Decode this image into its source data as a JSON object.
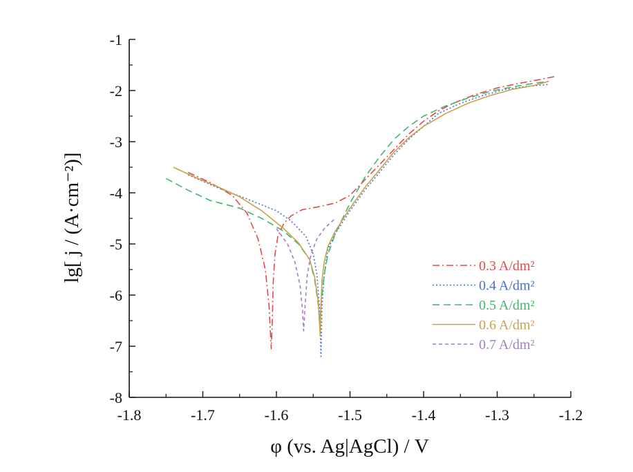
{
  "chart_data": {
    "type": "line",
    "title": "",
    "xlabel": "φ (vs. Ag|AgCl) / V",
    "ylabel": "lg[ j / (A·cm⁻²)]",
    "xlim": [
      -1.8,
      -1.2
    ],
    "ylim": [
      -8,
      -1
    ],
    "xticks": [
      -1.8,
      -1.7,
      -1.6,
      -1.5,
      -1.4,
      -1.3,
      -1.2
    ],
    "yticks": [
      -8,
      -7,
      -6,
      -5,
      -4,
      -3,
      -2,
      -1
    ],
    "xtick_labels": [
      "-1.8",
      "-1.7",
      "-1.6",
      "-1.5",
      "-1.4",
      "-1.3",
      "-1.2"
    ],
    "ytick_labels": [
      "-8",
      "-7",
      "-6",
      "-5",
      "-4",
      "-3",
      "-2",
      "-1"
    ],
    "grid": false,
    "legend_position": "bottom-right",
    "series": [
      {
        "name": "0.3 A/dm²",
        "color": "#e04a4a",
        "dash": "dashdot",
        "x": [
          -1.72,
          -1.69,
          -1.66,
          -1.64,
          -1.625,
          -1.615,
          -1.61,
          -1.607,
          -1.6055,
          -1.6045,
          -1.602,
          -1.598,
          -1.59,
          -1.58,
          -1.565,
          -1.545,
          -1.52,
          -1.5,
          -1.48,
          -1.46,
          -1.44,
          -1.42,
          -1.4,
          -1.38,
          -1.36,
          -1.33,
          -1.3,
          -1.27,
          -1.24,
          -1.22
        ],
        "y": [
          -3.6,
          -3.8,
          -4.05,
          -4.4,
          -4.9,
          -5.5,
          -6.2,
          -7.05,
          -6.5,
          -5.8,
          -5.2,
          -4.85,
          -4.6,
          -4.45,
          -4.33,
          -4.28,
          -4.2,
          -4.05,
          -3.75,
          -3.45,
          -3.15,
          -2.85,
          -2.6,
          -2.4,
          -2.25,
          -2.08,
          -1.95,
          -1.86,
          -1.78,
          -1.72
        ]
      },
      {
        "name": "0.4 A/dm²",
        "color": "#4a6fd1",
        "dash": "dotted",
        "x": [
          -1.72,
          -1.68,
          -1.64,
          -1.6,
          -1.58,
          -1.56,
          -1.55,
          -1.545,
          -1.541,
          -1.5395,
          -1.538,
          -1.535,
          -1.53,
          -1.52,
          -1.5,
          -1.48,
          -1.46,
          -1.44,
          -1.42,
          -1.4,
          -1.38,
          -1.35,
          -1.32,
          -1.29,
          -1.26,
          -1.23
        ],
        "y": [
          -3.65,
          -3.9,
          -4.12,
          -4.35,
          -4.55,
          -4.85,
          -5.2,
          -5.6,
          -6.3,
          -7.2,
          -6.2,
          -5.6,
          -5.1,
          -4.8,
          -4.35,
          -3.95,
          -3.6,
          -3.25,
          -2.95,
          -2.7,
          -2.45,
          -2.25,
          -2.1,
          -1.98,
          -1.92,
          -1.88
        ]
      },
      {
        "name": "0.5 A/dm²",
        "color": "#3cb86a",
        "dash": "dashed",
        "x": [
          -1.75,
          -1.72,
          -1.69,
          -1.65,
          -1.62,
          -1.59,
          -1.57,
          -1.555,
          -1.548,
          -1.543,
          -1.541,
          -1.539,
          -1.535,
          -1.53,
          -1.52,
          -1.5,
          -1.48,
          -1.46,
          -1.44,
          -1.42,
          -1.4,
          -1.37,
          -1.34,
          -1.31,
          -1.28,
          -1.25,
          -1.23
        ],
        "y": [
          -3.72,
          -3.95,
          -4.15,
          -4.3,
          -4.5,
          -4.75,
          -5.0,
          -5.3,
          -5.7,
          -6.2,
          -6.6,
          -6.1,
          -5.6,
          -5.2,
          -4.8,
          -4.2,
          -3.7,
          -3.3,
          -2.95,
          -2.7,
          -2.5,
          -2.3,
          -2.15,
          -2.02,
          -1.93,
          -1.86,
          -1.82
        ]
      },
      {
        "name": "0.6 A/dm²",
        "color": "#c9a14a",
        "dash": "solid",
        "x": [
          -1.74,
          -1.71,
          -1.68,
          -1.65,
          -1.62,
          -1.59,
          -1.57,
          -1.555,
          -1.548,
          -1.543,
          -1.5405,
          -1.5395,
          -1.538,
          -1.535,
          -1.53,
          -1.52,
          -1.5,
          -1.48,
          -1.46,
          -1.44,
          -1.42,
          -1.4,
          -1.37,
          -1.34,
          -1.31,
          -1.28,
          -1.25,
          -1.23
        ],
        "y": [
          -3.5,
          -3.7,
          -3.88,
          -4.08,
          -4.35,
          -4.7,
          -4.98,
          -5.3,
          -5.65,
          -6.15,
          -6.8,
          -6.2,
          -5.7,
          -5.35,
          -5.05,
          -4.75,
          -4.3,
          -3.9,
          -3.55,
          -3.2,
          -2.92,
          -2.7,
          -2.45,
          -2.25,
          -2.1,
          -1.98,
          -1.9,
          -1.82
        ]
      },
      {
        "name": "0.7 A/dm²",
        "color": "#a07cc8",
        "dash": "shortdash",
        "x": [
          -1.6,
          -1.585,
          -1.575,
          -1.568,
          -1.5645,
          -1.563,
          -1.561,
          -1.558,
          -1.553,
          -1.545,
          -1.535,
          -1.52
        ],
        "y": [
          -4.7,
          -5.0,
          -5.35,
          -5.8,
          -6.3,
          -6.7,
          -6.2,
          -5.6,
          -5.2,
          -4.9,
          -4.7,
          -4.5
        ]
      }
    ]
  }
}
